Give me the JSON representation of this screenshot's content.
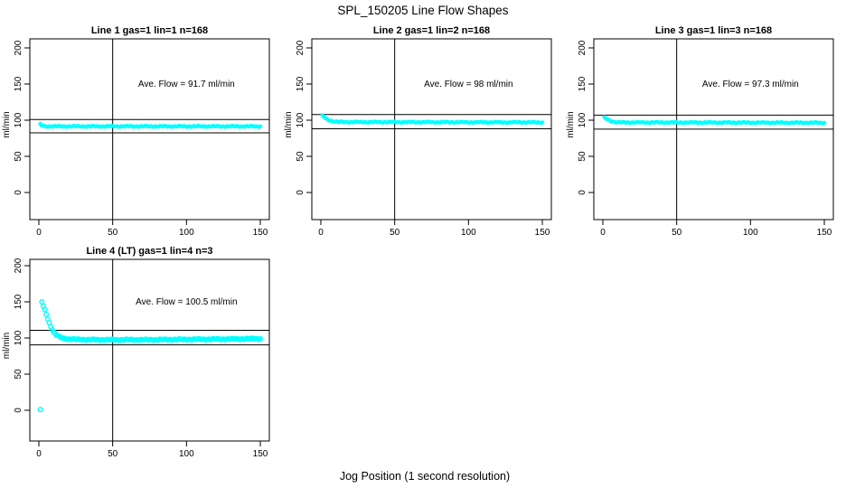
{
  "title": "SPL_150205  Line Flow Shapes",
  "xlabel": "Jog Position (1 second resolution)",
  "colors": {
    "data": "#00FFFF",
    "axis": "#000000",
    "background": "#FFFFFF"
  },
  "chart_data": [
    {
      "type": "scatter",
      "title": "Line 1 gas=1 lin=1 n=168",
      "n": 168,
      "ave_flow": 91.7,
      "ave_label": "Ave. Flow =  91.7  ml/min",
      "ylabel": "ml/min",
      "x_ticks": [
        0,
        50,
        100,
        150
      ],
      "y_ticks": [
        0,
        50,
        100,
        150,
        200
      ],
      "xlim": [
        0,
        150
      ],
      "ylim": [
        0,
        200
      ],
      "ref_lines": {
        "vertical_x": 50,
        "upper": 100.9,
        "lower": 82.5
      },
      "profile": [
        [
          1,
          94
        ],
        [
          2,
          92.5
        ],
        [
          4,
          91.5
        ],
        [
          150,
          91.5
        ]
      ],
      "jitter": 0.9,
      "marker": {
        "r": 2.2,
        "open": false
      }
    },
    {
      "type": "scatter",
      "title": "Line 2 gas=1 lin=2 n=168",
      "n": 168,
      "ave_flow": 98,
      "ave_label": "Ave. Flow =  98  ml/min",
      "ylabel": "ml/min",
      "x_ticks": [
        0,
        50,
        100,
        150
      ],
      "y_ticks": [
        0,
        50,
        100,
        150,
        200
      ],
      "xlim": [
        0,
        150
      ],
      "ylim": [
        0,
        200
      ],
      "ref_lines": {
        "vertical_x": 50,
        "upper": 107.8,
        "lower": 88.2
      },
      "profile": [
        [
          1,
          106
        ],
        [
          3,
          103
        ],
        [
          5,
          100.5
        ],
        [
          8,
          98.5
        ],
        [
          12,
          97.5
        ],
        [
          150,
          97
        ]
      ],
      "jitter": 0.9,
      "marker": {
        "r": 2.2,
        "open": false
      }
    },
    {
      "type": "scatter",
      "title": "Line 3 gas=1 lin=3 n=168",
      "n": 168,
      "ave_flow": 97.3,
      "ave_label": "Ave. Flow =  97.3  ml/min",
      "ylabel": "ml/min",
      "x_ticks": [
        0,
        50,
        100,
        150
      ],
      "y_ticks": [
        0,
        50,
        100,
        150,
        200
      ],
      "xlim": [
        0,
        150
      ],
      "ylim": [
        0,
        200
      ],
      "ref_lines": {
        "vertical_x": 50,
        "upper": 107.0,
        "lower": 87.6
      },
      "profile": [
        [
          1,
          103.5
        ],
        [
          3,
          101
        ],
        [
          6,
          98.5
        ],
        [
          10,
          97
        ],
        [
          150,
          96.5
        ]
      ],
      "jitter": 0.9,
      "marker": {
        "r": 2.2,
        "open": false
      }
    },
    {
      "type": "scatter",
      "title": "Line 4 (LT) gas=1 lin=4 n=3",
      "n": 3,
      "ave_flow": 100.5,
      "ave_label": "Ave. Flow =  100.5  ml/min",
      "ylabel": "ml/min",
      "x_ticks": [
        0,
        50,
        100,
        150
      ],
      "y_ticks": [
        0,
        50,
        100,
        150,
        200
      ],
      "xlim": [
        0,
        150
      ],
      "ylim": [
        0,
        200
      ],
      "ref_lines": {
        "vertical_x": 50,
        "upper": 110.6,
        "lower": 90.5
      },
      "profile": [
        [
          1,
          0
        ],
        [
          2,
          150
        ],
        [
          3,
          144
        ],
        [
          4,
          139
        ],
        [
          5,
          133
        ],
        [
          6,
          127
        ],
        [
          7,
          121
        ],
        [
          8,
          116
        ],
        [
          9,
          112
        ],
        [
          10,
          108
        ],
        [
          12,
          104
        ],
        [
          14,
          101.5
        ],
        [
          17,
          99.5
        ],
        [
          20,
          98.5
        ],
        [
          25,
          98
        ],
        [
          40,
          97.5
        ],
        [
          70,
          97.5
        ],
        [
          100,
          98
        ],
        [
          130,
          98.5
        ],
        [
          150,
          99
        ]
      ],
      "jitter": 1.0,
      "marker": {
        "r": 2.3,
        "open": true
      }
    }
  ]
}
